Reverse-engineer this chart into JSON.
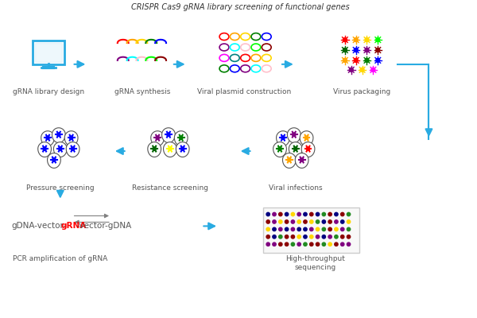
{
  "title": "CRISPR Cas9 gRNA library screening of functional genes",
  "background_color": "#ffffff",
  "arrow_color": "#29ABE2",
  "steps_row1": [
    "gRNA library design",
    "gRNA synthesis",
    "Viral plasmid construction",
    "Virus packaging"
  ],
  "steps_row2": [
    "Pressure screening",
    "Resistance screening",
    "Viral infections"
  ],
  "steps_row3": [
    "PCR amplification of gRNA",
    "High-throughput\nsequencing"
  ],
  "label_color": "#555555",
  "grna_colors": [
    "red",
    "#FF8C00",
    "#FFD700",
    "#228B22",
    "#006400",
    "#0000CD",
    "#4B0082",
    "#9400D3",
    "#FF69B4",
    "#00CED1",
    "#8B0000"
  ],
  "virus_colors": [
    "red",
    "orange",
    "yellow",
    "green",
    "darkgreen",
    "blue",
    "purple",
    "darkred",
    "teal",
    "magenta",
    "lime"
  ],
  "cell_colors_infections": [
    "blue",
    "purple",
    "orange",
    "green",
    "darkgreen",
    "red",
    "orange",
    "purple",
    "darkgreen",
    "red",
    "yellow",
    "blue"
  ],
  "cell_colors_resistance": [
    "purple",
    "blue",
    "green",
    "darkgreen",
    "yellow",
    "blue"
  ],
  "cell_colors_pressure": [
    "blue",
    "blue",
    "blue",
    "blue",
    "blue",
    "blue",
    "blue"
  ]
}
